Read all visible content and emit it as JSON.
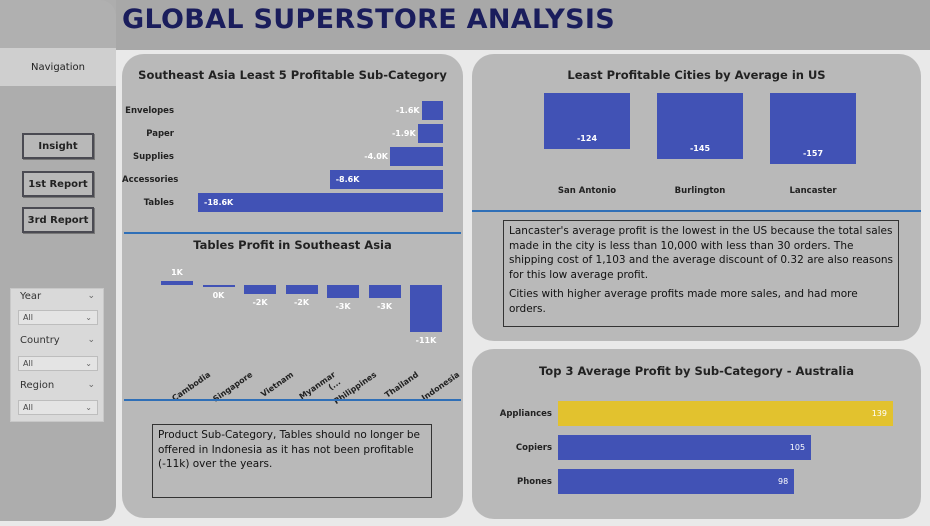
{
  "header": {
    "title": "GLOBAL SUPERSTORE ANALYSIS"
  },
  "nav": {
    "label": "Navigation",
    "buttons": [
      "Insight",
      "1st Report",
      "3rd Report"
    ]
  },
  "slicers": [
    {
      "label": "Year",
      "value": "All"
    },
    {
      "label": "Country",
      "value": "All"
    },
    {
      "label": "Region",
      "value": "All"
    }
  ],
  "colors": {
    "bar": "#4152b5",
    "highlight": "#e2c22e",
    "divider": "#2f6fb7",
    "title": "#1a1d5c"
  },
  "chart_data": [
    {
      "type": "bar",
      "orientation": "horizontal",
      "title": "Southeast Asia Least 5 Profitable Sub-Category",
      "categories": [
        "Envelopes",
        "Paper",
        "Supplies",
        "Accessories",
        "Tables"
      ],
      "values": [
        -1.6,
        -1.9,
        -4.0,
        -8.6,
        -18.6
      ],
      "value_labels": [
        "-1.6K",
        "-1.9K",
        "-4.0K",
        "-8.6K",
        "-18.6K"
      ]
    },
    {
      "type": "bar",
      "title": "Tables Profit in Southeast Asia",
      "categories": [
        "Cambodia",
        "Singapore",
        "Vietnam",
        "Myanmar (...",
        "Philippines",
        "Thailand",
        "Indonesia"
      ],
      "values": [
        1,
        0,
        -2,
        -2,
        -3,
        -3,
        -11
      ],
      "value_labels": [
        "1K",
        "0K",
        "-2K",
        "-2K",
        "-3K",
        "-3K",
        "-11K"
      ]
    },
    {
      "type": "bar",
      "title": "Least Profitable Cities by Average in US",
      "categories": [
        "San Antonio",
        "Burlington",
        "Lancaster"
      ],
      "values": [
        -124,
        -145,
        -157
      ],
      "value_labels": [
        "-124",
        "-145",
        "-157"
      ]
    },
    {
      "type": "bar",
      "orientation": "horizontal",
      "title": "Top 3 Average Profit by Sub-Category - Australia",
      "categories": [
        "Appliances",
        "Copiers",
        "Phones"
      ],
      "values": [
        139,
        105,
        98
      ],
      "value_labels": [
        "139",
        "105",
        "98"
      ]
    }
  ],
  "notes": {
    "indonesia": "Product Sub-Category, Tables should no longer be offered in Indonesia as it has not been profitable (-11k) over the years.",
    "lancaster_p1": "Lancaster's average profit is the lowest in the US because the total sales made in the city is less than 10,000 with less than 30 orders. The shipping cost of 1,103 and the average discount of 0.32 are also reasons for this low average profit.",
    "lancaster_p2": "Cities with higher average profits made more sales, and had more orders."
  }
}
